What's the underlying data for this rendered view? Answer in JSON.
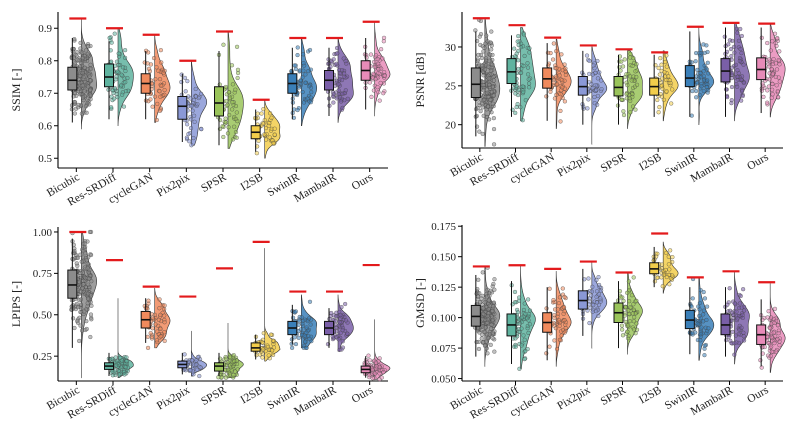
{
  "chart_data": [
    {
      "type": "raincloud",
      "id": "ssim",
      "ylabel": "SSIM [-]",
      "ylim": [
        0.47,
        0.95
      ],
      "yticks": [
        0.5,
        0.6,
        0.7,
        0.8,
        0.9
      ],
      "tick_labels": [
        "0.5",
        "0.6",
        "0.7",
        "0.8",
        "0.9"
      ],
      "categories": [
        "Bicubic",
        "Res-SRDiff",
        "cycleGAN",
        "Pix2pix",
        "SPSR",
        "I2SB",
        "SwinIR",
        "MambaIR",
        "Ours"
      ],
      "n_points": [
        200,
        70,
        60,
        50,
        65,
        45,
        65,
        70,
        70
      ],
      "stats": [
        {
          "q1": 0.71,
          "median": 0.74,
          "q3": 0.78,
          "wlo": 0.61,
          "whi": 0.87,
          "min": 0.59,
          "max": 0.93,
          "best": 0.93
        },
        {
          "q1": 0.72,
          "median": 0.75,
          "q3": 0.79,
          "wlo": 0.62,
          "whi": 0.86,
          "min": 0.6,
          "max": 0.9,
          "best": 0.9
        },
        {
          "q1": 0.7,
          "median": 0.73,
          "q3": 0.76,
          "wlo": 0.62,
          "whi": 0.83,
          "min": 0.61,
          "max": 0.88,
          "best": 0.88
        },
        {
          "q1": 0.62,
          "median": 0.66,
          "q3": 0.69,
          "wlo": 0.55,
          "whi": 0.76,
          "min": 0.54,
          "max": 0.8,
          "best": 0.8
        },
        {
          "q1": 0.63,
          "median": 0.67,
          "q3": 0.72,
          "wlo": 0.54,
          "whi": 0.83,
          "min": 0.53,
          "max": 0.89,
          "best": 0.89
        },
        {
          "q1": 0.56,
          "median": 0.58,
          "q3": 0.6,
          "wlo": 0.52,
          "whi": 0.65,
          "min": 0.5,
          "max": 0.68,
          "best": 0.68
        },
        {
          "q1": 0.7,
          "median": 0.73,
          "q3": 0.76,
          "wlo": 0.62,
          "whi": 0.84,
          "min": 0.6,
          "max": 0.87,
          "best": 0.87
        },
        {
          "q1": 0.71,
          "median": 0.74,
          "q3": 0.77,
          "wlo": 0.63,
          "whi": 0.84,
          "min": 0.61,
          "max": 0.87,
          "best": 0.87
        },
        {
          "q1": 0.74,
          "median": 0.77,
          "q3": 0.8,
          "wlo": 0.65,
          "whi": 0.87,
          "min": 0.63,
          "max": 0.92,
          "best": 0.92
        }
      ]
    },
    {
      "type": "raincloud",
      "id": "psnr",
      "ylabel": "PSNR [dB]",
      "ylim": [
        17,
        34.5
      ],
      "yticks": [
        20,
        25,
        30
      ],
      "tick_labels": [
        "20",
        "25",
        "30"
      ],
      "categories": [
        "Bicubic",
        "Res-SRDiff",
        "cycleGAN",
        "Pix2pix",
        "SPSR",
        "I2SB",
        "SwinIR",
        "MambaIR",
        "Ours"
      ],
      "n_points": [
        200,
        70,
        60,
        50,
        65,
        45,
        65,
        70,
        70
      ],
      "stats": [
        {
          "q1": 23.5,
          "median": 25.2,
          "q3": 27.3,
          "wlo": 18.5,
          "whi": 32.0,
          "min": 17.2,
          "max": 33.5,
          "best": 33.7
        },
        {
          "q1": 25.3,
          "median": 26.8,
          "q3": 28.5,
          "wlo": 21.0,
          "whi": 31.5,
          "min": 20.5,
          "max": 32.5,
          "best": 32.8
        },
        {
          "q1": 24.7,
          "median": 25.9,
          "q3": 27.3,
          "wlo": 20.5,
          "whi": 30.5,
          "min": 19.5,
          "max": 31.0,
          "best": 31.2
        },
        {
          "q1": 23.8,
          "median": 24.9,
          "q3": 26.2,
          "wlo": 20.0,
          "whi": 29.5,
          "min": 17.5,
          "max": 30.0,
          "best": 30.2
        },
        {
          "q1": 23.7,
          "median": 24.8,
          "q3": 26.2,
          "wlo": 20.0,
          "whi": 29.0,
          "min": 19.5,
          "max": 29.5,
          "best": 29.7
        },
        {
          "q1": 23.8,
          "median": 24.9,
          "q3": 26.0,
          "wlo": 21.0,
          "whi": 29.0,
          "min": 20.5,
          "max": 29.5,
          "best": 29.3
        },
        {
          "q1": 24.9,
          "median": 26.0,
          "q3": 27.6,
          "wlo": 21.0,
          "whi": 32.0,
          "min": 20.0,
          "max": 32.5,
          "best": 32.6
        },
        {
          "q1": 25.5,
          "median": 26.9,
          "q3": 28.5,
          "wlo": 21.0,
          "whi": 32.5,
          "min": 20.5,
          "max": 33.0,
          "best": 33.1
        },
        {
          "q1": 25.8,
          "median": 27.1,
          "q3": 28.6,
          "wlo": 21.5,
          "whi": 32.5,
          "min": 21.0,
          "max": 33.0,
          "best": 33.0
        }
      ]
    },
    {
      "type": "raincloud",
      "id": "lpips",
      "ylabel": "LPIPS [-]",
      "ylim": [
        0.1,
        1.03
      ],
      "yticks": [
        0.25,
        0.5,
        0.75,
        1.0
      ],
      "tick_labels": [
        "0.25",
        "0.50",
        "0.75",
        "1.00"
      ],
      "categories": [
        "Bicubic",
        "Res-SRDiff",
        "cycleGAN",
        "Pix2pix",
        "SPSR",
        "I2SB",
        "SwinIR",
        "MambaIR",
        "Ours"
      ],
      "n_points": [
        200,
        70,
        60,
        50,
        65,
        45,
        65,
        70,
        70
      ],
      "stats": [
        {
          "q1": 0.6,
          "median": 0.68,
          "q3": 0.77,
          "wlo": 0.3,
          "whi": 0.96,
          "min": 0.12,
          "max": 1.0,
          "best": 1.0
        },
        {
          "q1": 0.17,
          "median": 0.19,
          "q3": 0.21,
          "wlo": 0.13,
          "whi": 0.27,
          "min": 0.12,
          "max": 0.6,
          "best": 0.83
        },
        {
          "q1": 0.42,
          "median": 0.47,
          "q3": 0.52,
          "wlo": 0.33,
          "whi": 0.6,
          "min": 0.3,
          "max": 0.66,
          "best": 0.67
        },
        {
          "q1": 0.18,
          "median": 0.2,
          "q3": 0.22,
          "wlo": 0.14,
          "whi": 0.27,
          "min": 0.13,
          "max": 0.4,
          "best": 0.61
        },
        {
          "q1": 0.16,
          "median": 0.19,
          "q3": 0.21,
          "wlo": 0.13,
          "whi": 0.27,
          "min": 0.12,
          "max": 0.45,
          "best": 0.78
        },
        {
          "q1": 0.28,
          "median": 0.3,
          "q3": 0.33,
          "wlo": 0.23,
          "whi": 0.38,
          "min": 0.22,
          "max": 0.9,
          "best": 0.94
        },
        {
          "q1": 0.38,
          "median": 0.42,
          "q3": 0.46,
          "wlo": 0.32,
          "whi": 0.56,
          "min": 0.3,
          "max": 0.62,
          "best": 0.64
        },
        {
          "q1": 0.38,
          "median": 0.42,
          "q3": 0.46,
          "wlo": 0.3,
          "whi": 0.54,
          "min": 0.28,
          "max": 0.62,
          "best": 0.64
        },
        {
          "q1": 0.15,
          "median": 0.17,
          "q3": 0.19,
          "wlo": 0.12,
          "whi": 0.25,
          "min": 0.11,
          "max": 0.47,
          "best": 0.8
        }
      ]
    },
    {
      "type": "raincloud",
      "id": "gmsd",
      "ylabel": "GMSD [-]",
      "ylim": [
        0.048,
        0.176
      ],
      "yticks": [
        0.05,
        0.075,
        0.1,
        0.125,
        0.15,
        0.175
      ],
      "tick_labels": [
        "0.050",
        "0.075",
        "0.100",
        "0.125",
        "0.150",
        "0.175"
      ],
      "categories": [
        "Bicubic",
        "Res-SRDiff",
        "cycleGAN",
        "Pix2pix",
        "SPSR",
        "I2SB",
        "SwinIR",
        "MambaIR",
        "Ours"
      ],
      "n_points": [
        200,
        70,
        60,
        50,
        65,
        45,
        65,
        70,
        70
      ],
      "stats": [
        {
          "q1": 0.093,
          "median": 0.101,
          "q3": 0.11,
          "wlo": 0.068,
          "whi": 0.135,
          "min": 0.06,
          "max": 0.142,
          "best": 0.142
        },
        {
          "q1": 0.085,
          "median": 0.094,
          "q3": 0.103,
          "wlo": 0.062,
          "whi": 0.13,
          "min": 0.058,
          "max": 0.143,
          "best": 0.143
        },
        {
          "q1": 0.088,
          "median": 0.096,
          "q3": 0.104,
          "wlo": 0.065,
          "whi": 0.125,
          "min": 0.06,
          "max": 0.138,
          "best": 0.14
        },
        {
          "q1": 0.107,
          "median": 0.114,
          "q3": 0.122,
          "wlo": 0.085,
          "whi": 0.14,
          "min": 0.075,
          "max": 0.146,
          "best": 0.146
        },
        {
          "q1": 0.096,
          "median": 0.104,
          "q3": 0.112,
          "wlo": 0.075,
          "whi": 0.13,
          "min": 0.07,
          "max": 0.137,
          "best": 0.137
        },
        {
          "q1": 0.136,
          "median": 0.14,
          "q3": 0.145,
          "wlo": 0.125,
          "whi": 0.158,
          "min": 0.12,
          "max": 0.162,
          "best": 0.169
        },
        {
          "q1": 0.091,
          "median": 0.098,
          "q3": 0.106,
          "wlo": 0.07,
          "whi": 0.125,
          "min": 0.065,
          "max": 0.133,
          "best": 0.133
        },
        {
          "q1": 0.086,
          "median": 0.094,
          "q3": 0.103,
          "wlo": 0.068,
          "whi": 0.125,
          "min": 0.062,
          "max": 0.138,
          "best": 0.138
        },
        {
          "q1": 0.078,
          "median": 0.086,
          "q3": 0.094,
          "wlo": 0.06,
          "whi": 0.115,
          "min": 0.055,
          "max": 0.128,
          "best": 0.129
        }
      ]
    }
  ],
  "colors": {
    "series": [
      "#8c8c8c",
      "#5fb39f",
      "#f08a5d",
      "#8a98d6",
      "#9ac45a",
      "#f2cd4b",
      "#3a7fb8",
      "#7a5fa8",
      "#e78bb8"
    ],
    "best_marker": "#e31a1c",
    "axis": "#000000"
  }
}
